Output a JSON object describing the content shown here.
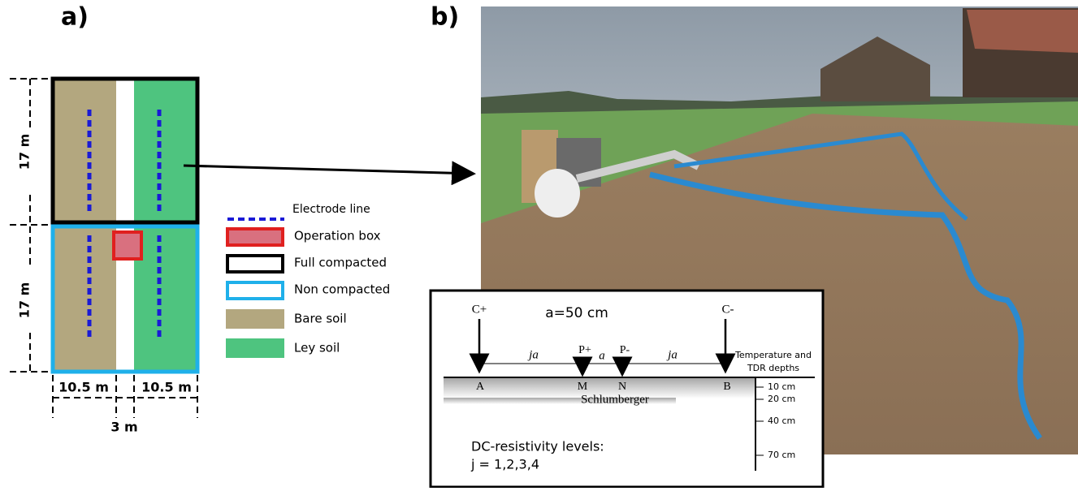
{
  "panel_a": {
    "label": "a)",
    "dim_top": "17 m",
    "dim_bottom": "17 m",
    "dim_left_width": "10.5 m",
    "dim_right_width": "10.5 m",
    "dim_gap": "3 m",
    "legend": [
      "Electrode line",
      "Operation box",
      "Full compacted",
      "Non compacted",
      "Bare soil",
      "Ley soil"
    ]
  },
  "panel_b": {
    "label": "b)",
    "inset": {
      "c_plus": "C+",
      "c_minus": "C-",
      "spacing": "a=50 cm",
      "ja_left": "ja",
      "p_plus": "P+",
      "a": "a",
      "p_minus": "P-",
      "ja_right": "ja",
      "electrodes": [
        "A",
        "M",
        "N",
        "B"
      ],
      "array": "Schlumberger",
      "depth_title": [
        "Temperature and",
        "TDR depths"
      ],
      "depths": [
        "10 cm",
        "20 cm",
        "40 cm",
        "70 cm"
      ],
      "levels_title": "DC-resistivity levels:",
      "levels": "j = 1,2,3,4"
    }
  }
}
